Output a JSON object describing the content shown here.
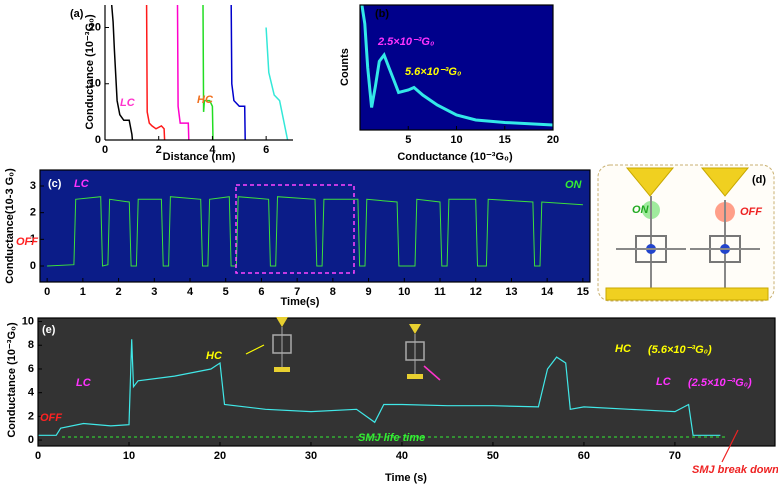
{
  "chart_data": [
    {
      "type": "line",
      "panel_label": "(a)",
      "x_label": "Distance (nm)",
      "y_label": "Conductance (10⁻³G₀)",
      "xlim": [
        0,
        7
      ],
      "ylim": [
        0,
        24
      ],
      "xticks": [
        0,
        2,
        4,
        6
      ],
      "yticks": [
        0,
        10,
        20
      ],
      "background": "#ffffff",
      "series": [
        {
          "color": "#000000",
          "x": [
            0.25,
            0.3,
            0.35,
            0.45,
            0.55,
            0.7,
            0.9,
            1.0,
            1.02
          ],
          "values": [
            24,
            21,
            16,
            7,
            4.5,
            3.5,
            3.5,
            1,
            0
          ]
        },
        {
          "color": "#ff1a1a",
          "x": [
            1.55,
            1.57,
            1.65,
            1.75,
            1.9,
            2.1,
            2.2,
            2.22
          ],
          "values": [
            24,
            5,
            3,
            2.5,
            2,
            2.5,
            2,
            0
          ]
        },
        {
          "color": "#ff00cc",
          "x": [
            2.7,
            2.72,
            2.8,
            3.0,
            3.1,
            3.12
          ],
          "values": [
            24,
            6,
            3,
            3,
            3,
            0
          ]
        },
        {
          "color": "#22dd22",
          "x": [
            3.65,
            3.67,
            3.7,
            3.9,
            4.0,
            4.02
          ],
          "values": [
            24,
            5,
            7,
            7,
            6,
            0
          ]
        },
        {
          "color": "#0000cc",
          "x": [
            4.7,
            4.72,
            4.8,
            5.0,
            5.2,
            5.22
          ],
          "values": [
            24,
            10,
            7,
            6,
            6,
            0
          ]
        },
        {
          "color": "#33e8d8",
          "x": [
            6.0,
            6.1,
            6.3,
            6.5,
            6.8
          ],
          "values": [
            20,
            12,
            8,
            7,
            0
          ]
        }
      ],
      "annotations": [
        {
          "text": "LC",
          "color": "#ff33cc"
        },
        {
          "text": "HC",
          "color": "#f07020"
        }
      ]
    },
    {
      "type": "line",
      "panel_label": "(b)",
      "x_label": "Conductance (10⁻³G₀)",
      "y_label": "Counts",
      "xlim": [
        0,
        20
      ],
      "ylim": [
        0,
        1
      ],
      "xticks": [
        5,
        10,
        15,
        20
      ],
      "background": "#00008b",
      "series": [
        {
          "color": "#33e8e8",
          "x": [
            0.2,
            0.5,
            0.8,
            1.2,
            1.6,
            2.0,
            2.5,
            3.0,
            3.5,
            4.0,
            5.0,
            5.6,
            6.5,
            8,
            10,
            12,
            15,
            20
          ],
          "values": [
            1.0,
            0.85,
            0.5,
            0.18,
            0.35,
            0.55,
            0.6,
            0.5,
            0.4,
            0.3,
            0.32,
            0.34,
            0.28,
            0.2,
            0.12,
            0.08,
            0.06,
            0.04
          ]
        }
      ],
      "annotations": [
        {
          "text": "2.5×10⁻³G₀",
          "color": "#ff33ff"
        },
        {
          "text": "5.6×10⁻³G₀",
          "color": "#ffff00"
        }
      ]
    },
    {
      "type": "line",
      "panel_label": "(c)",
      "x_label": "Time(s)",
      "y_label": "Conductance(10-3 G₀)",
      "xlim": [
        -0.2,
        15.2
      ],
      "ylim": [
        -0.6,
        3.6
      ],
      "xticks": [
        0,
        1,
        2,
        3,
        4,
        5,
        6,
        7,
        8,
        9,
        10,
        11,
        12,
        13,
        14,
        15
      ],
      "yticks": [
        0,
        1,
        2,
        3
      ],
      "background": "#0b1c88",
      "series": [
        {
          "color": "#3ce03c",
          "x": [
            0,
            0.75,
            0.8,
            1.5,
            1.55,
            1.7,
            1.75,
            2.3,
            2.35,
            2.5,
            2.55,
            3.2,
            3.25,
            3.4,
            3.45,
            4.3,
            4.35,
            4.5,
            4.55,
            5.1,
            5.15,
            5.3,
            5.35,
            6.2,
            6.25,
            6.4,
            6.45,
            7.5,
            7.55,
            7.7,
            7.75,
            8.7,
            8.75,
            8.9,
            8.95,
            9.8,
            9.85,
            10.3,
            10.35,
            11.0,
            11.05,
            11.2,
            11.25,
            12.0,
            12.05,
            12.3,
            12.35,
            13.6,
            13.65,
            13.8,
            13.85,
            15.0
          ],
          "values": [
            0,
            0.05,
            2.5,
            2.6,
            0,
            0.05,
            2.5,
            2.4,
            0,
            0,
            2.5,
            2.5,
            0,
            0,
            2.6,
            2.5,
            0,
            0,
            2.5,
            2.6,
            0,
            0,
            2.6,
            2.5,
            0,
            0,
            2.6,
            2.5,
            0,
            0,
            2.5,
            2.5,
            0,
            0,
            2.5,
            2.4,
            0,
            0,
            2.5,
            2.4,
            0,
            0,
            2.5,
            2.5,
            0,
            0,
            2.5,
            2.4,
            0,
            0,
            2.4,
            2.3
          ]
        }
      ],
      "annotations": [
        {
          "text": "LC",
          "color": "#ff33ff"
        },
        {
          "text": "ON",
          "color": "#33ee33"
        },
        {
          "text": "OFF",
          "color": "#ff2222"
        }
      ]
    },
    {
      "type": "line",
      "panel_label": "(e)",
      "x_label": "Time (s)",
      "y_label": "Conductance (10⁻³G₀)",
      "xlim": [
        0,
        81
      ],
      "ylim": [
        -0.5,
        10.3
      ],
      "xticks": [
        0,
        10,
        20,
        30,
        40,
        50,
        60,
        70
      ],
      "yticks": [
        0,
        2,
        4,
        6,
        8,
        10
      ],
      "background": "#333333",
      "series": [
        {
          "color": "#40e8e8",
          "x": [
            0,
            2,
            2.5,
            5,
            8,
            10,
            10.3,
            10.5,
            11,
            15,
            19,
            20,
            20.5,
            25,
            30,
            35,
            37,
            38,
            40,
            45,
            50,
            55,
            56,
            57,
            58,
            58.5,
            60,
            65,
            70,
            71.5,
            72,
            75
          ],
          "values": [
            0.4,
            0.4,
            1.0,
            1.4,
            1.2,
            1.3,
            8.5,
            4.5,
            5.0,
            5.4,
            6.0,
            6.5,
            3.0,
            2.6,
            2.4,
            2.6,
            1.5,
            3.0,
            3.0,
            2.9,
            2.9,
            2.8,
            6.0,
            7.0,
            6.5,
            2.6,
            2.8,
            2.6,
            2.4,
            3.0,
            0.4,
            0.4
          ]
        }
      ],
      "annotations": [
        {
          "text": "LC",
          "color": "#ff33ff"
        },
        {
          "text": "HC",
          "color": "#ffff00"
        },
        {
          "text": "HC",
          "color": "#ffff00"
        },
        {
          "text": "(5.6×10⁻³G₀)",
          "color": "#ffff00"
        },
        {
          "text": "LC",
          "color": "#ff33ff"
        },
        {
          "text": "(2.5×10⁻³G₀)",
          "color": "#ff33ff"
        },
        {
          "text": "OFF",
          "color": "#ff2222"
        },
        {
          "text": "SMJ life time",
          "color": "#33ee33"
        },
        {
          "text": "SMJ break down",
          "color": "#ee2222"
        }
      ]
    }
  ],
  "panel_d": {
    "label": "(d)",
    "on": "ON",
    "off": "OFF"
  }
}
